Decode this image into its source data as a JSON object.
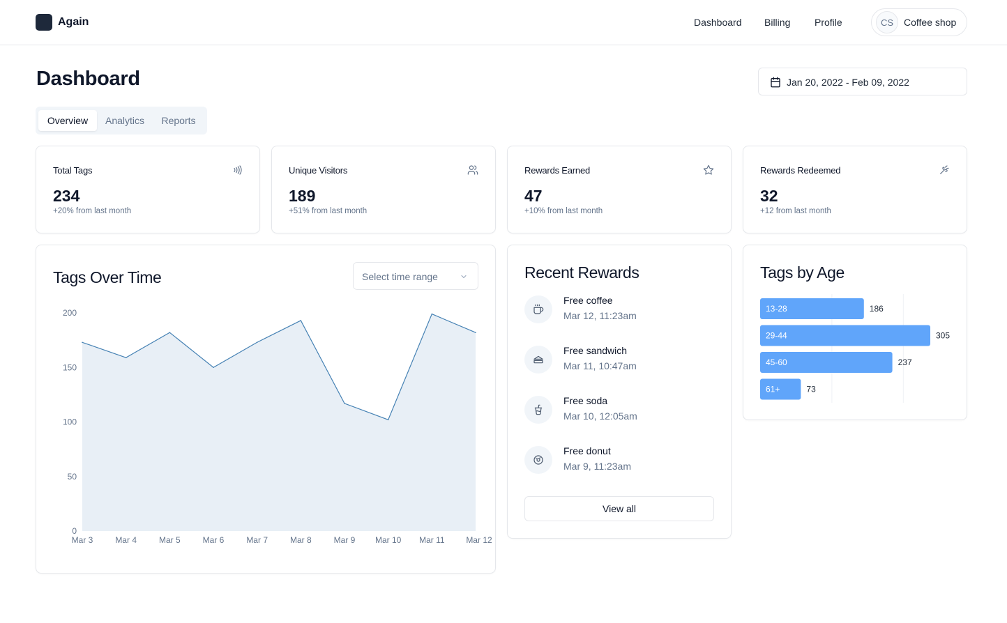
{
  "header": {
    "app_name": "Again",
    "nav": [
      "Dashboard",
      "Billing",
      "Profile"
    ],
    "account": {
      "initials": "CS",
      "name": "Coffee shop"
    }
  },
  "page": {
    "title": "Dashboard",
    "date_range": "Jan 20, 2022 - Feb 09, 2022",
    "tabs": [
      "Overview",
      "Analytics",
      "Reports"
    ],
    "active_tab": "Overview"
  },
  "stats": [
    {
      "label": "Total Tags",
      "value": "234",
      "sub": "+20% from last month",
      "icon": "nfc-icon"
    },
    {
      "label": "Unique Visitors",
      "value": "189",
      "sub": "+51% from last month",
      "icon": "users-icon"
    },
    {
      "label": "Rewards Earned",
      "value": "47",
      "sub": "+10% from last month",
      "icon": "star-icon"
    },
    {
      "label": "Rewards Redeemed",
      "value": "32",
      "sub": "+12 from last month",
      "icon": "gift-icon"
    }
  ],
  "tags_over_time": {
    "title": "Tags Over Time",
    "select_placeholder": "Select time range"
  },
  "chart_data": [
    {
      "type": "area",
      "title": "Tags Over Time",
      "x": [
        "Mar 3",
        "Mar 4",
        "Mar 5",
        "Mar 6",
        "Mar 7",
        "Mar 8",
        "Mar 9",
        "Mar 10",
        "Mar 11",
        "Mar 12"
      ],
      "y_ticks": [
        0,
        50,
        100,
        150,
        200
      ],
      "ylim": [
        0,
        200
      ],
      "series": [
        {
          "values": [
            173,
            159,
            182,
            150,
            173,
            193,
            117,
            102,
            199,
            182
          ]
        }
      ],
      "grid": false,
      "color": "#4682b4",
      "fill": "#e8eff6"
    },
    {
      "type": "bar",
      "orientation": "horizontal",
      "title": "Tags by Age",
      "categories": [
        "13-28",
        "29-44",
        "45-60",
        "61+"
      ],
      "values": [
        186,
        305,
        237,
        73
      ],
      "color": "#60a5fa"
    }
  ],
  "recent_rewards": {
    "title": "Recent Rewards",
    "items": [
      {
        "name": "Free coffee",
        "time": "Mar 12, 11:23am",
        "icon": "coffee-icon"
      },
      {
        "name": "Free sandwich",
        "time": "Mar 11, 10:47am",
        "icon": "sandwich-icon"
      },
      {
        "name": "Free soda",
        "time": "Mar 10, 12:05am",
        "icon": "cup-soda-icon"
      },
      {
        "name": "Free donut",
        "time": "Mar 9, 11:23am",
        "icon": "donut-icon"
      }
    ],
    "view_all": "View all"
  },
  "tags_by_age": {
    "title": "Tags by Age"
  }
}
